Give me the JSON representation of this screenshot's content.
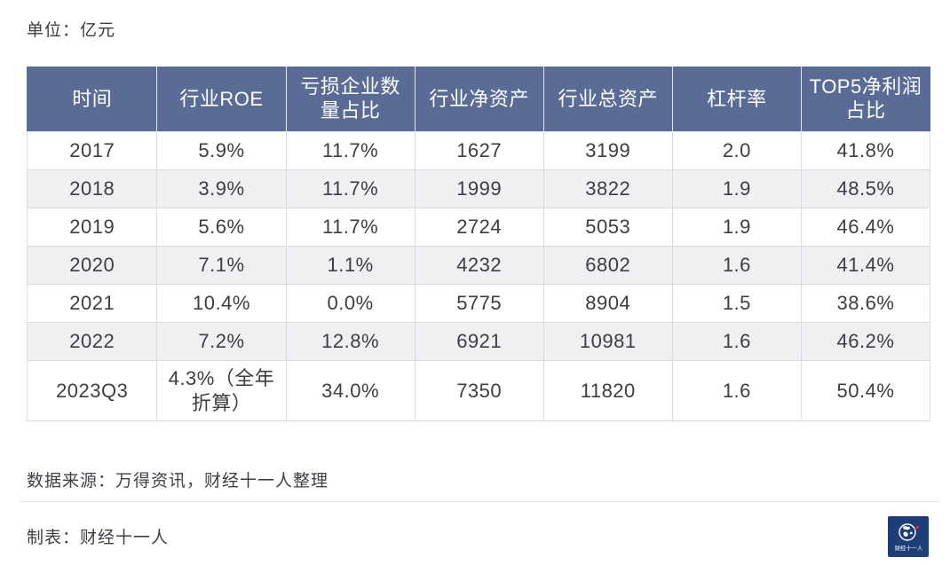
{
  "page": {
    "unit_label": "单位：亿元",
    "source_note": "数据来源：万得资讯，财经十一人整理",
    "credit_note": "制表：财经十一人",
    "logo_text": "财经十一人"
  },
  "chart_data": {
    "type": "table",
    "title": "",
    "unit": "亿元",
    "columns": [
      "时间",
      "行业ROE",
      "亏损企业数量占比",
      "行业净资产",
      "行业总资产",
      "杠杆率",
      "TOP5净利润占比"
    ],
    "rows": [
      [
        "2017",
        "5.9%",
        "11.7%",
        "1627",
        "3199",
        "2.0",
        "41.8%"
      ],
      [
        "2018",
        "3.9%",
        "11.7%",
        "1999",
        "3822",
        "1.9",
        "48.5%"
      ],
      [
        "2019",
        "5.6%",
        "11.7%",
        "2724",
        "5053",
        "1.9",
        "46.4%"
      ],
      [
        "2020",
        "7.1%",
        "1.1%",
        "4232",
        "6802",
        "1.6",
        "41.4%"
      ],
      [
        "2021",
        "10.4%",
        "0.0%",
        "5775",
        "8904",
        "1.5",
        "38.6%"
      ],
      [
        "2022",
        "7.2%",
        "12.8%",
        "6921",
        "10981",
        "1.6",
        "46.2%"
      ],
      [
        "2023Q3",
        "4.3%（全年折算）",
        "34.0%",
        "7350",
        "11820",
        "1.6",
        "50.4%"
      ]
    ]
  },
  "colors": {
    "header_bg": "#5a6c96",
    "header_text": "#ffffff",
    "row_alt_bg": "#f0f0f2",
    "border": "#dcdce0",
    "body_text": "#3d3d42",
    "logo_bg": "#1d3e77"
  }
}
